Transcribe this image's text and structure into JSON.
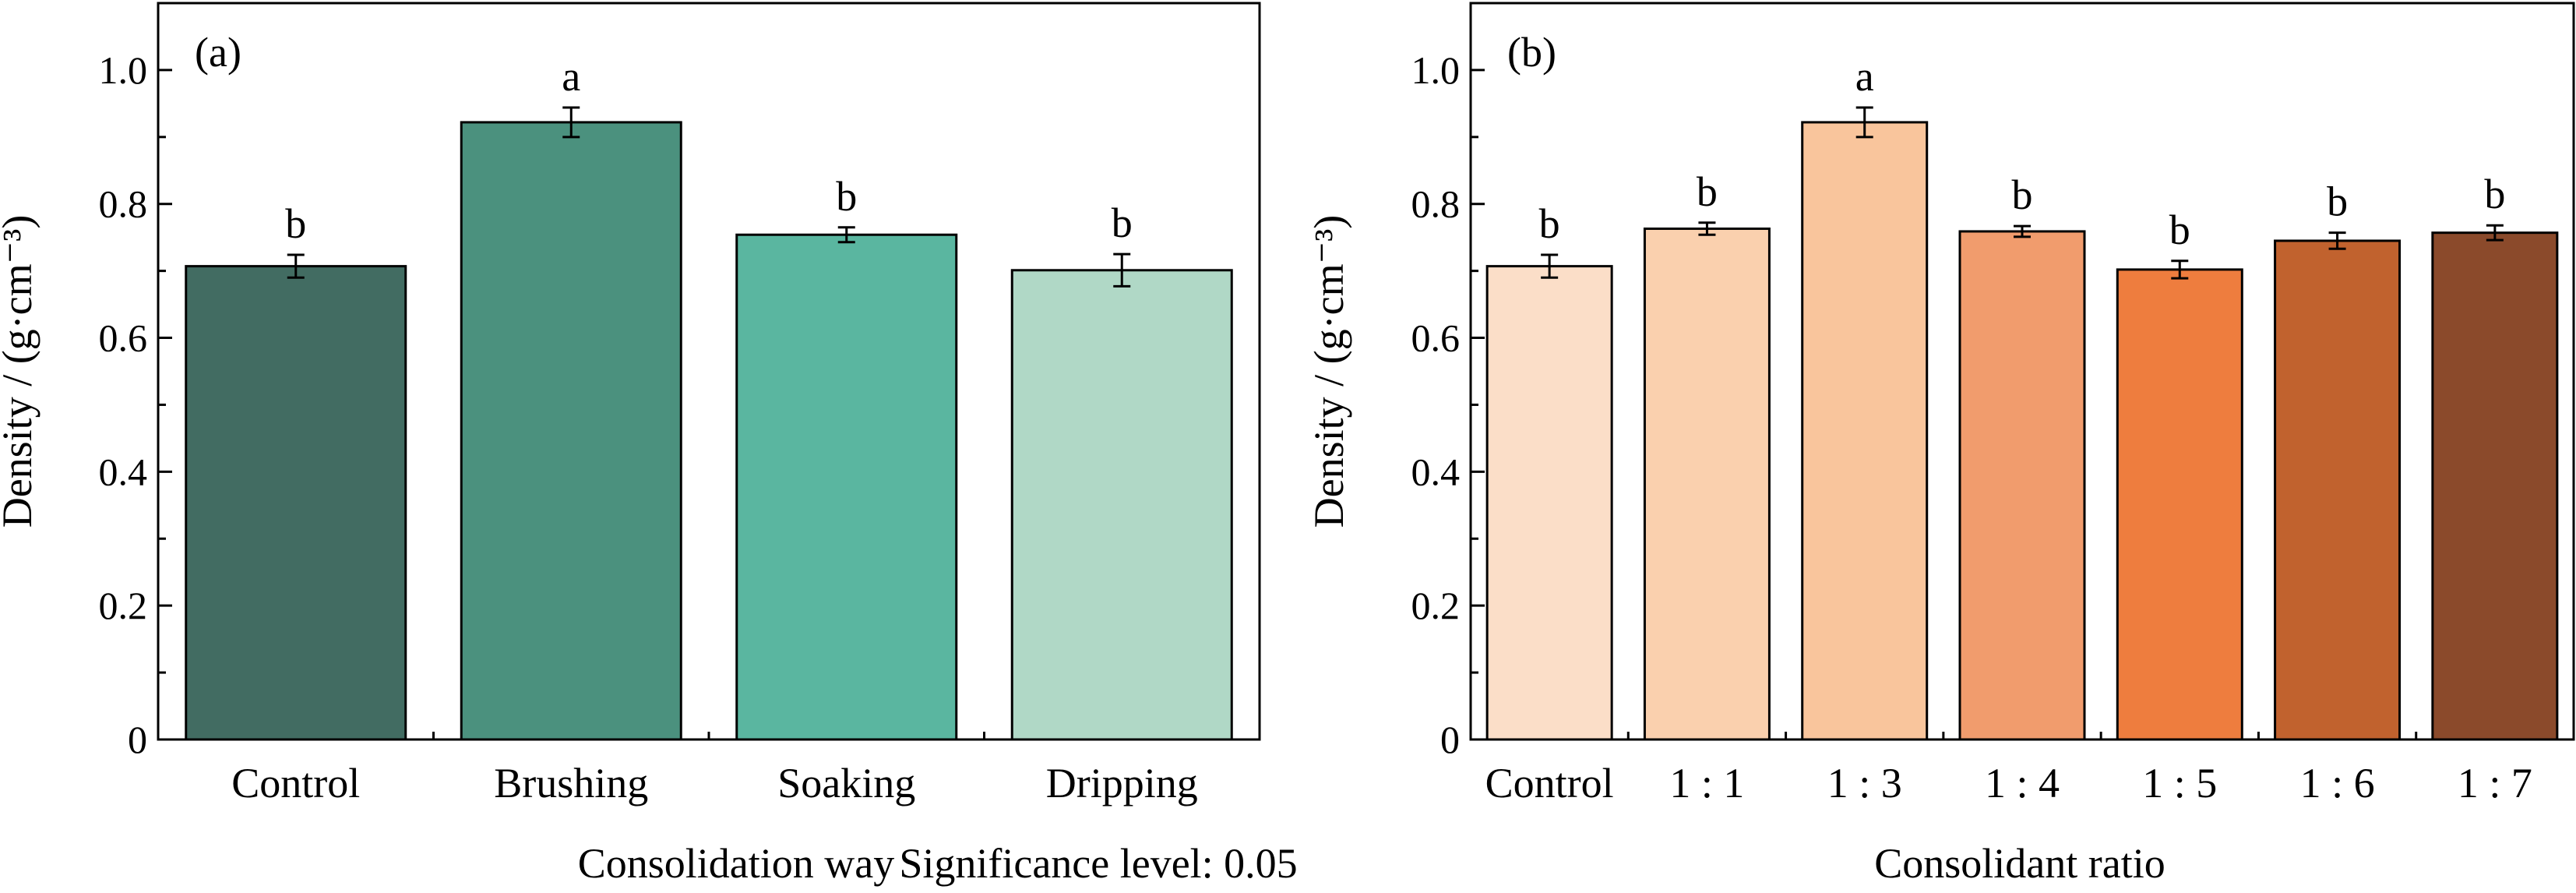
{
  "chart_data": [
    {
      "type": "bar",
      "panel_label": "(a)",
      "categories": [
        "Control",
        "Brushing",
        "Soaking",
        "Dripping"
      ],
      "values": [
        0.707,
        0.922,
        0.754,
        0.701
      ],
      "errors": [
        0.017,
        0.022,
        0.011,
        0.024
      ],
      "significance": [
        "b",
        "a",
        "b",
        "b"
      ],
      "colors": [
        "#426c62",
        "#4b917e",
        "#5ab6a0",
        "#b0d8c6"
      ],
      "ylabel": "Density / (g·cm⁻³)",
      "xlabel": "Consolidation way",
      "ylim": [
        0,
        1.1
      ],
      "yticks": [
        0,
        0.2,
        0.4,
        0.6,
        0.8,
        1.0
      ],
      "ytick_labels": [
        "0",
        "0.2",
        "0.4",
        "0.6",
        "0.8",
        "1.0"
      ]
    },
    {
      "type": "bar",
      "panel_label": "(b)",
      "categories": [
        "Control",
        "1 : 1",
        "1 : 3",
        "1 : 4",
        "1 : 5",
        "1 : 6",
        "1 : 7"
      ],
      "values": [
        0.707,
        0.763,
        0.922,
        0.759,
        0.702,
        0.745,
        0.757
      ],
      "errors": [
        0.017,
        0.009,
        0.022,
        0.008,
        0.013,
        0.012,
        0.011
      ],
      "significance": [
        "b",
        "b",
        "a",
        "b",
        "b",
        "b",
        "b"
      ],
      "colors": [
        "#fbdec8",
        "#fad0ae",
        "#f9c59c",
        "#f19c6d",
        "#ee7d3e",
        "#c1622e",
        "#8b4a2b"
      ],
      "ylabel": "Density / (g·cm⁻³)",
      "xlabel": "Consolidant ratio",
      "ylim": [
        0,
        1.1
      ],
      "yticks": [
        0,
        0.2,
        0.4,
        0.6,
        0.8,
        1.0
      ],
      "ytick_labels": [
        "0",
        "0.2",
        "0.4",
        "0.6",
        "0.8",
        "1.0"
      ]
    }
  ],
  "footer": {
    "significance_note": "Significance level: 0.05"
  }
}
